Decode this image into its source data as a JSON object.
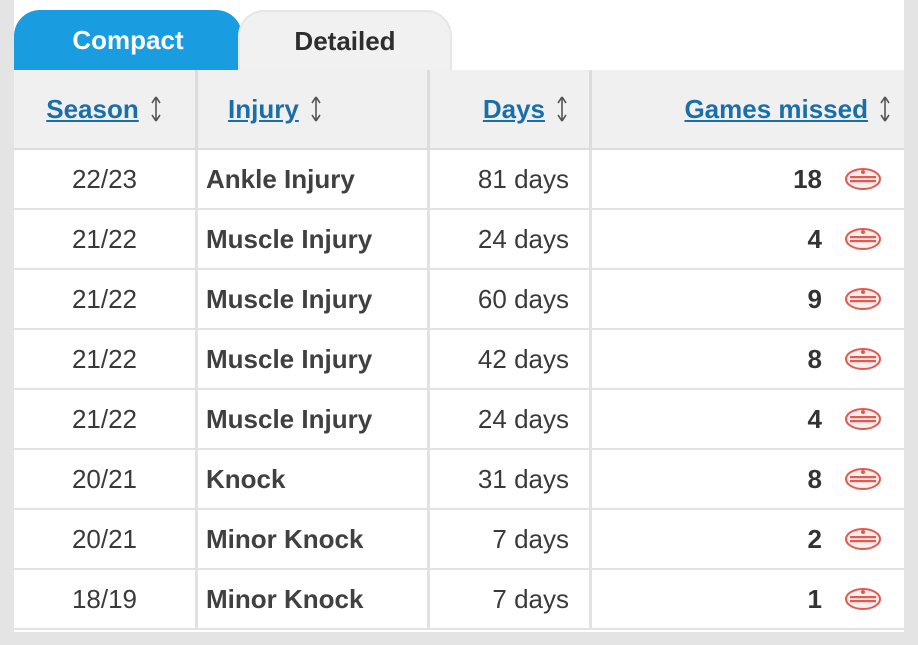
{
  "tabs": [
    {
      "label": "Compact",
      "active": true
    },
    {
      "label": "Detailed",
      "active": false
    }
  ],
  "headers": {
    "season": "Season",
    "injury": "Injury",
    "days": "Days",
    "games_missed": "Games missed"
  },
  "icons": {
    "sort": "sort-arrows-icon",
    "club": "club-crest-icon"
  },
  "colors": {
    "accent": "#1a9de0",
    "link": "#1b6fa8",
    "crest_red": "#e05a4e"
  },
  "rows": [
    {
      "season": "22/23",
      "injury": "Ankle Injury",
      "days": "81 days",
      "games": "18"
    },
    {
      "season": "21/22",
      "injury": "Muscle Injury",
      "days": "24 days",
      "games": "4"
    },
    {
      "season": "21/22",
      "injury": "Muscle Injury",
      "days": "60 days",
      "games": "9"
    },
    {
      "season": "21/22",
      "injury": "Muscle Injury",
      "days": "42 days",
      "games": "8"
    },
    {
      "season": "21/22",
      "injury": "Muscle Injury",
      "days": "24 days",
      "games": "4"
    },
    {
      "season": "20/21",
      "injury": "Knock",
      "days": "31 days",
      "games": "8"
    },
    {
      "season": "20/21",
      "injury": "Minor Knock",
      "days": "7 days",
      "games": "2"
    },
    {
      "season": "18/19",
      "injury": "Minor Knock",
      "days": "7 days",
      "games": "1"
    }
  ]
}
